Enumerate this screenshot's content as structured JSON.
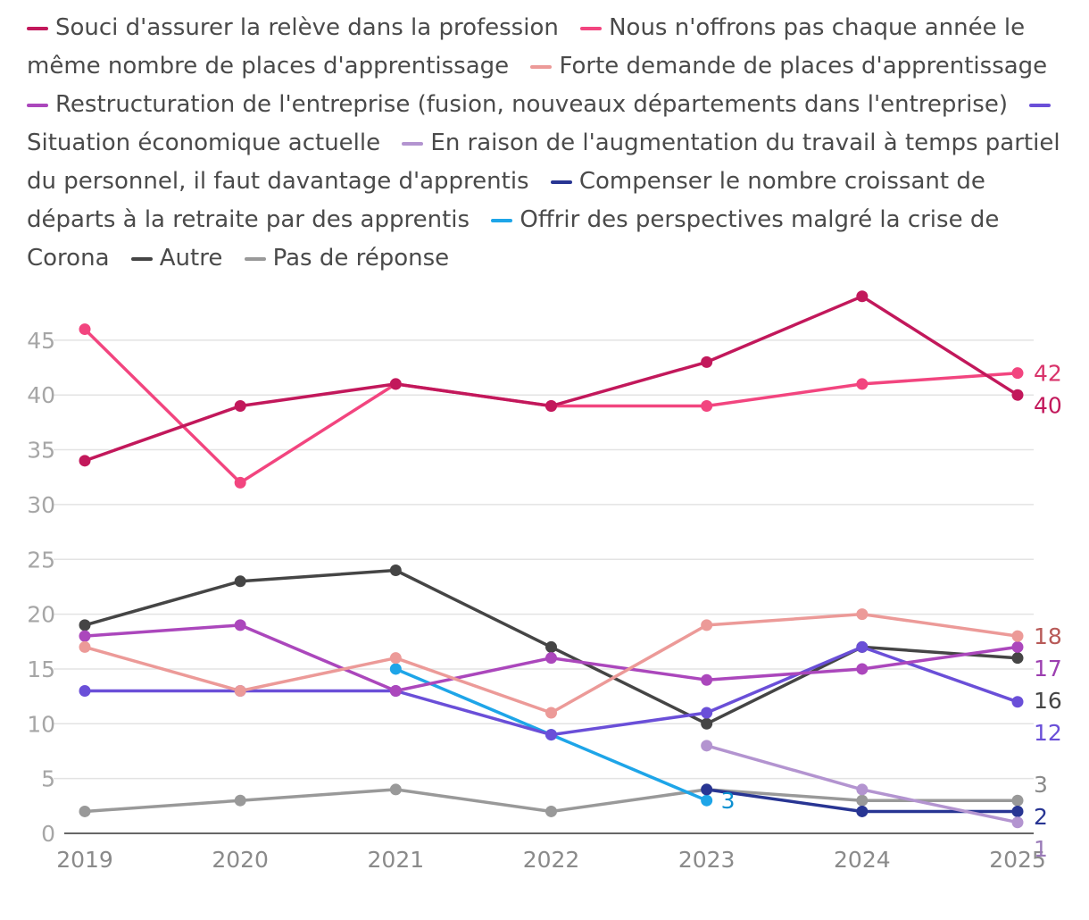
{
  "chart_data": {
    "type": "line",
    "categories": [
      "2019",
      "2020",
      "2021",
      "2022",
      "2023",
      "2024",
      "2025"
    ],
    "ylim": [
      0,
      48
    ],
    "yticks": [
      0,
      5,
      10,
      15,
      20,
      25,
      30,
      35,
      40,
      45
    ],
    "grid": true,
    "legend_position": "top",
    "series": [
      {
        "name": "Souci d'assurer la relève dans la profession",
        "color": "#c2185b",
        "values": [
          34,
          39,
          41,
          39,
          43,
          49,
          40
        ],
        "end_label": "40",
        "label_color": "#c2185b"
      },
      {
        "name": "Nous n'offrons pas chaque année le même nombre de places d'apprentissage",
        "color": "#f2457f",
        "values": [
          46,
          32,
          41,
          39,
          39,
          41,
          42
        ],
        "end_label": "42",
        "label_color": "#d8336a"
      },
      {
        "name": "Forte demande de places d'apprentissage",
        "color": "#ec9a98",
        "values": [
          17,
          13,
          16,
          11,
          19,
          20,
          18
        ],
        "end_label": "18",
        "label_color": "#b85a58"
      },
      {
        "name": "Restructuration de l'entreprise (fusion, nouveaux départements dans l'entreprise)",
        "color": "#ab47bc",
        "values": [
          18,
          19,
          13,
          16,
          14,
          15,
          17
        ],
        "end_label": "17",
        "label_color": "#9c3fb0"
      },
      {
        "name": "Situation économique actuelle",
        "color": "#6a4fd8",
        "values": [
          13,
          13,
          13,
          9,
          11,
          17,
          12
        ],
        "end_label": "12",
        "label_color": "#6a4fd8"
      },
      {
        "name": "En raison de l'augmentation du travail à temps partiel du personnel, il faut davantage d'apprentis",
        "color": "#b394d0",
        "values": [
          null,
          null,
          null,
          null,
          8,
          4,
          1
        ],
        "end_label": "1",
        "label_color": "#9a7bb8"
      },
      {
        "name": "Compenser le nombre croissant de départs à la retraite par des apprentis",
        "color": "#283593",
        "values": [
          null,
          null,
          null,
          null,
          4,
          2,
          2
        ],
        "end_label": "2",
        "label_color": "#283593"
      },
      {
        "name": "Offrir des perspectives malgré la crise de Corona",
        "color": "#1ea5e8",
        "values": [
          null,
          null,
          15,
          9,
          3,
          null,
          null
        ],
        "end_label": "3",
        "label_color": "#0b8fd0",
        "label_index": 4
      },
      {
        "name": "Autre",
        "color": "#454545",
        "values": [
          19,
          23,
          24,
          17,
          10,
          17,
          16
        ],
        "end_label": "16",
        "label_color": "#454545"
      },
      {
        "name": "Pas de réponse",
        "color": "#999999",
        "values": [
          2,
          3,
          4,
          2,
          4,
          3,
          3
        ],
        "end_label": "3",
        "label_color": "#8a8a8a"
      }
    ]
  }
}
